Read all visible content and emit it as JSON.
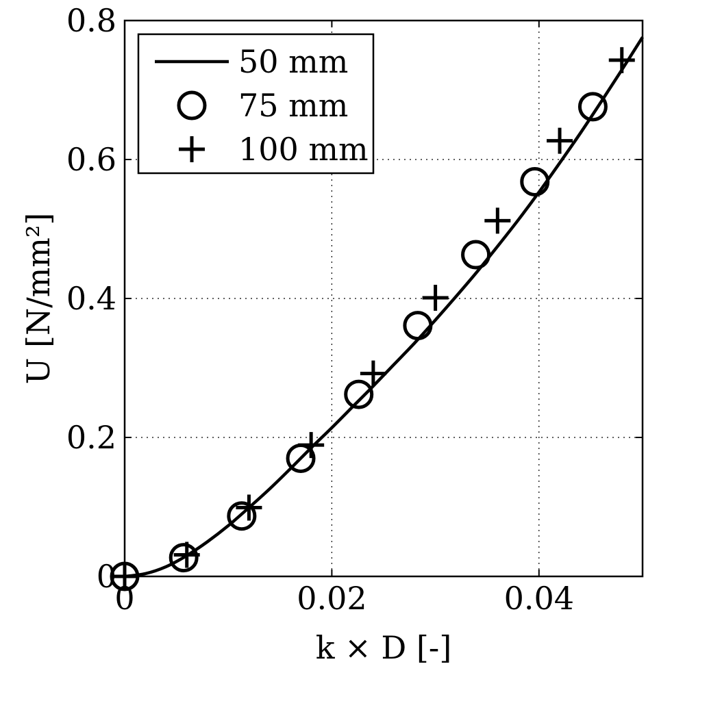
{
  "chart_data": {
    "type": "line",
    "xlabel": "k × D [-]",
    "ylabel": "U [N/mm²]",
    "xlim": [
      0,
      0.05
    ],
    "ylim": [
      0,
      0.8
    ],
    "x_ticks": [
      0,
      0.02,
      0.04
    ],
    "x_tick_labels": [
      "0",
      "0.02",
      "0.04"
    ],
    "y_ticks": [
      0,
      0.2,
      0.4,
      0.6,
      0.8
    ],
    "y_tick_labels": [
      "0",
      "0.2",
      "0.4",
      "0.6",
      "0.8"
    ],
    "grid": true,
    "legend_position": "top-left",
    "series": [
      {
        "name": "50 mm",
        "marker": "none",
        "line": "solid",
        "x": [
          0,
          0.002,
          0.004,
          0.006,
          0.008,
          0.01,
          0.012,
          0.014,
          0.016,
          0.018,
          0.02,
          0.022,
          0.024,
          0.026,
          0.028,
          0.03,
          0.032,
          0.034,
          0.036,
          0.038,
          0.04,
          0.042,
          0.044,
          0.046,
          0.048,
          0.05
        ],
        "y": [
          0,
          0.004,
          0.014,
          0.03,
          0.05,
          0.073,
          0.099,
          0.126,
          0.155,
          0.185,
          0.214,
          0.244,
          0.274,
          0.305,
          0.336,
          0.369,
          0.403,
          0.438,
          0.475,
          0.513,
          0.553,
          0.595,
          0.638,
          0.683,
          0.729,
          0.776
        ]
      },
      {
        "name": "75 mm",
        "marker": "circle",
        "line": "none",
        "x": [
          0,
          0.0057,
          0.0113,
          0.017,
          0.0226,
          0.0283,
          0.0339,
          0.0396,
          0.0452
        ],
        "y": [
          0,
          0.027,
          0.087,
          0.17,
          0.262,
          0.361,
          0.463,
          0.568,
          0.676
        ]
      },
      {
        "name": "100 mm",
        "marker": "plus",
        "line": "none",
        "x": [
          0,
          0.006,
          0.012,
          0.018,
          0.024,
          0.03,
          0.036,
          0.042,
          0.048
        ],
        "y": [
          0,
          0.031,
          0.099,
          0.189,
          0.292,
          0.401,
          0.512,
          0.627,
          0.743
        ]
      }
    ]
  }
}
